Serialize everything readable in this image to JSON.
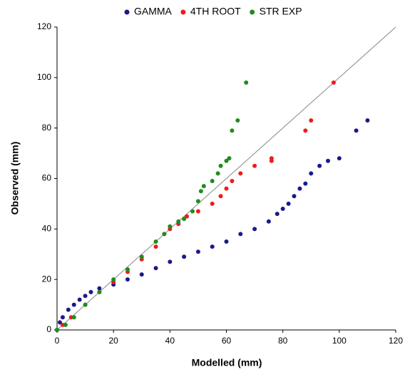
{
  "chart_data": {
    "type": "scatter",
    "x_label": "Modelled (mm)",
    "y_label": "Observed (mm)",
    "xlim": [
      0,
      120
    ],
    "ylim": [
      0,
      120
    ],
    "xticks": [
      0,
      20,
      40,
      60,
      80,
      100,
      120
    ],
    "yticks": [
      0,
      20,
      40,
      60,
      80,
      100,
      120
    ],
    "grid": false,
    "legend": "top",
    "reference_line": true,
    "series": [
      {
        "name": "GAMMA",
        "color": "#1a1a8c",
        "x": [
          0,
          1,
          2,
          4,
          6,
          8,
          10,
          12,
          15,
          20,
          25,
          30,
          35,
          40,
          45,
          50,
          55,
          60,
          65,
          70,
          75,
          78,
          80,
          82,
          84,
          86,
          88,
          90,
          93,
          96,
          100,
          106,
          110
        ],
        "y": [
          0,
          3,
          5,
          8,
          10,
          12,
          13.5,
          15,
          16.5,
          18,
          20,
          22,
          24.5,
          27,
          29,
          31,
          33,
          35,
          38,
          40,
          43,
          46,
          48,
          50,
          53,
          56,
          58,
          62,
          65,
          67,
          68,
          79,
          83
        ]
      },
      {
        "name": "4TH ROOT",
        "color": "#ee1c1c",
        "x": [
          0,
          2,
          5,
          10,
          15,
          20,
          25,
          30,
          35,
          38,
          40,
          43,
          46,
          50,
          55,
          58,
          60,
          62,
          65,
          70,
          76,
          76,
          88,
          90,
          98
        ],
        "y": [
          0,
          2,
          5,
          10,
          15,
          19,
          23,
          28,
          33,
          38,
          40,
          42,
          45,
          47,
          50,
          53,
          56,
          59,
          62,
          65,
          67,
          68,
          79,
          83,
          98
        ]
      },
      {
        "name": "STR EXP",
        "color": "#1e8c1e",
        "x": [
          0,
          3,
          6,
          10,
          15,
          20,
          25,
          30,
          35,
          38,
          40,
          43,
          45,
          48,
          50,
          51,
          52,
          55,
          57,
          58,
          60,
          61,
          62,
          64,
          67
        ],
        "y": [
          0,
          2,
          5,
          10,
          15,
          20,
          24,
          29,
          35,
          38,
          41,
          43,
          44,
          47,
          51,
          55,
          57,
          59,
          62,
          65,
          67,
          68,
          79,
          83,
          98
        ]
      }
    ]
  }
}
